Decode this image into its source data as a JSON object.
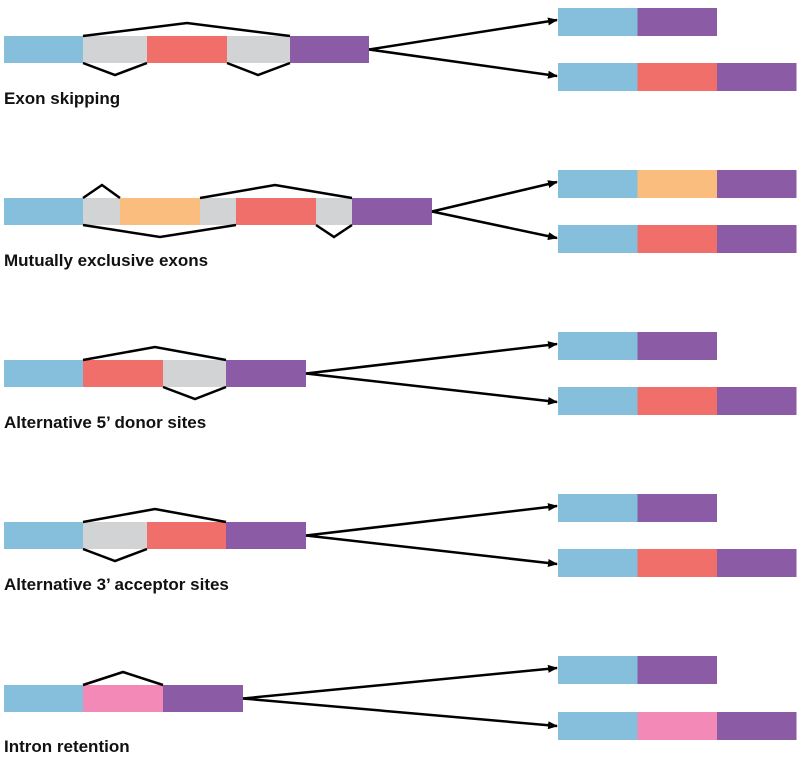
{
  "colors": {
    "exon_1": "#86bfdb",
    "intron": "#d1d3d4",
    "exon_red": "#f06f6b",
    "exon_orange": "#fbbd7d",
    "exon_last": "#8b5ba5",
    "retained_intron": "#f289b7",
    "line": "#000000"
  },
  "sections": [
    {
      "label": "Exon skipping",
      "pre_mrna": [
        "exon_1",
        "intron",
        "exon_red",
        "intron",
        "exon_last"
      ],
      "products": [
        [
          "exon_1",
          "exon_last"
        ],
        [
          "exon_1",
          "exon_red",
          "exon_last"
        ]
      ]
    },
    {
      "label": "Mutually exclusive exons",
      "pre_mrna": [
        "exon_1",
        "intron",
        "exon_orange",
        "intron",
        "exon_red",
        "intron",
        "exon_last"
      ],
      "products": [
        [
          "exon_1",
          "exon_orange",
          "exon_last"
        ],
        [
          "exon_1",
          "exon_red",
          "exon_last"
        ]
      ]
    },
    {
      "label": "Alternative 5’ donor sites",
      "pre_mrna": [
        "exon_1",
        "exon_red",
        "intron",
        "exon_last"
      ],
      "products": [
        [
          "exon_1",
          "exon_last"
        ],
        [
          "exon_1",
          "exon_red",
          "exon_last"
        ]
      ]
    },
    {
      "label": "Alternative 3’ acceptor sites",
      "pre_mrna": [
        "exon_1",
        "intron",
        "exon_red",
        "exon_last"
      ],
      "products": [
        [
          "exon_1",
          "exon_last"
        ],
        [
          "exon_1",
          "exon_red",
          "exon_last"
        ]
      ]
    },
    {
      "label": "Intron retention",
      "pre_mrna": [
        "exon_1",
        "retained_intron",
        "exon_last"
      ],
      "products": [
        [
          "exon_1",
          "exon_last"
        ],
        [
          "exon_1",
          "retained_intron",
          "exon_last"
        ]
      ]
    }
  ]
}
